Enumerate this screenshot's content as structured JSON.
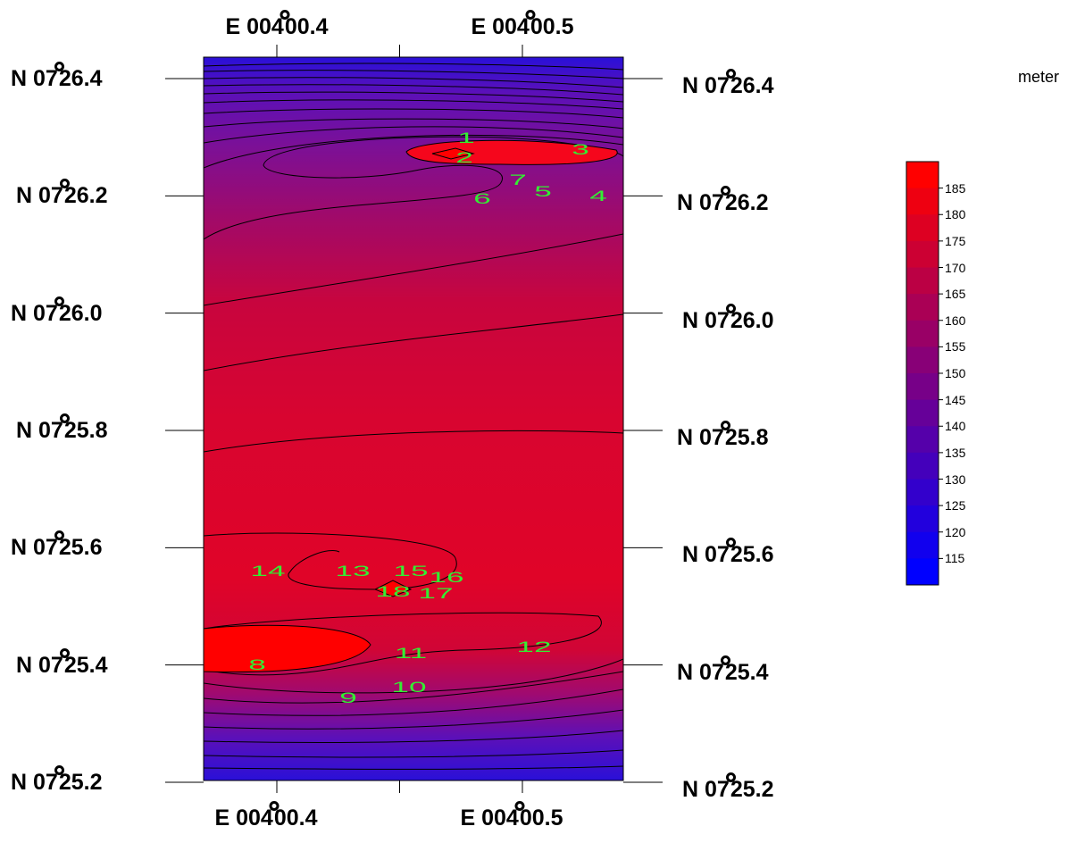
{
  "map": {
    "x_axis": {
      "ticks": [
        {
          "lon": 0.4,
          "label": "E 004",
          "label_rest": "00.4"
        },
        {
          "lon": 0.5,
          "label": "E 004",
          "label_rest": "00.5"
        }
      ],
      "range": [
        0.37,
        0.54
      ]
    },
    "y_axis": {
      "ticks": [
        {
          "lat": 26.4,
          "prefix": "N 07",
          "value": "26.4"
        },
        {
          "lat": 26.2,
          "prefix": "N 07",
          "value": "26.2"
        },
        {
          "lat": 26.0,
          "prefix": "N 07",
          "value": "26.0"
        },
        {
          "lat": 25.8,
          "prefix": "N 07",
          "value": "25.8"
        },
        {
          "lat": 25.6,
          "prefix": "N 07",
          "value": "25.6"
        },
        {
          "lat": 25.4,
          "prefix": "N 07",
          "value": "25.4"
        },
        {
          "lat": 25.2,
          "prefix": "N 07",
          "value": "25.2"
        }
      ],
      "range": [
        25.2,
        26.44
      ]
    },
    "points": [
      "1",
      "2",
      "3",
      "4",
      "5",
      "6",
      "7",
      "8",
      "9",
      "10",
      "11",
      "12",
      "13",
      "14",
      "15",
      "16",
      "17",
      "18"
    ],
    "point_label_color": "#33ee33"
  },
  "legend": {
    "title": "meter",
    "levels": [
      185,
      180,
      175,
      170,
      165,
      160,
      155,
      150,
      145,
      140,
      135,
      130,
      125,
      120,
      115
    ],
    "color_low": "#0000ff",
    "color_high": "#ff0000"
  }
}
